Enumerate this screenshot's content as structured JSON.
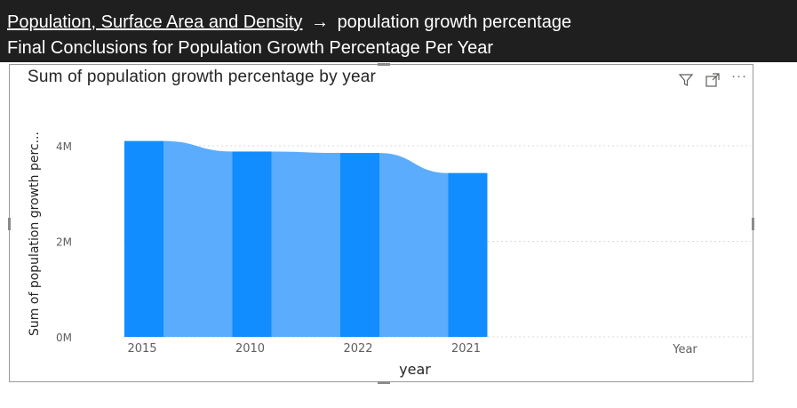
{
  "header": {
    "breadcrumb_link": "Population, Surface Area and Density",
    "breadcrumb_arrow": "→",
    "breadcrumb_current": "population growth percentage",
    "page_subtitle": "Final Conclusions for Population Growth Percentage Per Year"
  },
  "visual": {
    "icons": [
      "filter-icon",
      "focus-mode-icon",
      "more-options-icon"
    ],
    "more_options_label": "···"
  },
  "chart_data": {
    "type": "bar",
    "title": "Sum of population growth percentage by year",
    "xlabel": "year",
    "ylabel": "Sum of population growth perc...",
    "categories": [
      "2015",
      "2010",
      "2022",
      "2021"
    ],
    "values": [
      4100000,
      3880000,
      3850000,
      3430000
    ],
    "ylim": [
      0,
      4800000
    ],
    "yticks": [
      {
        "value": 0,
        "label": "0M"
      },
      {
        "value": 2000000,
        "label": "2M"
      },
      {
        "value": 4000000,
        "label": "4M"
      }
    ],
    "legend_label": "Year",
    "grid": true,
    "colors": {
      "bar": "#118dff",
      "ribbon": "#5cacfd",
      "grid": "#d9d9d9",
      "tick_text": "#605e5c"
    }
  }
}
